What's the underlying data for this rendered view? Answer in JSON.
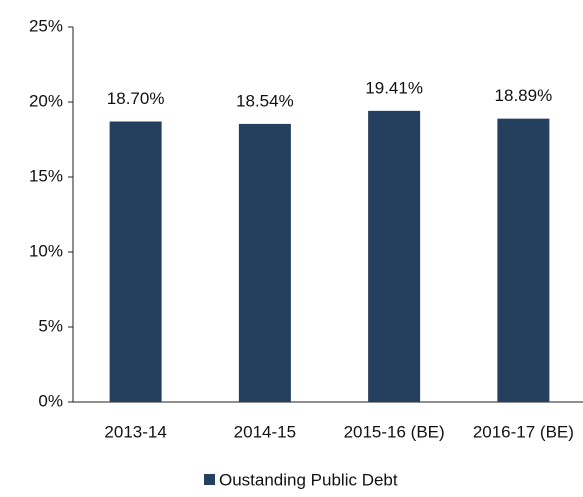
{
  "chart_data": {
    "type": "bar",
    "categories": [
      "2013-14",
      "2014-15",
      "2015-16 (BE)",
      "2016-17 (BE)"
    ],
    "values": [
      18.7,
      18.54,
      19.41,
      18.89
    ],
    "value_labels": [
      "18.70%",
      "18.54%",
      "19.41%",
      "18.89%"
    ],
    "color": "#253f5f",
    "legend": "Oustanding Public Debt",
    "ylim": [
      0,
      25
    ],
    "yticks": [
      {
        "value": 0,
        "label": "0%"
      },
      {
        "value": 5,
        "label": "5%"
      },
      {
        "value": 10,
        "label": "10%"
      },
      {
        "value": 15,
        "label": "15%"
      },
      {
        "value": 20,
        "label": "20%"
      },
      {
        "value": 25,
        "label": "25%"
      }
    ],
    "grid": false
  }
}
